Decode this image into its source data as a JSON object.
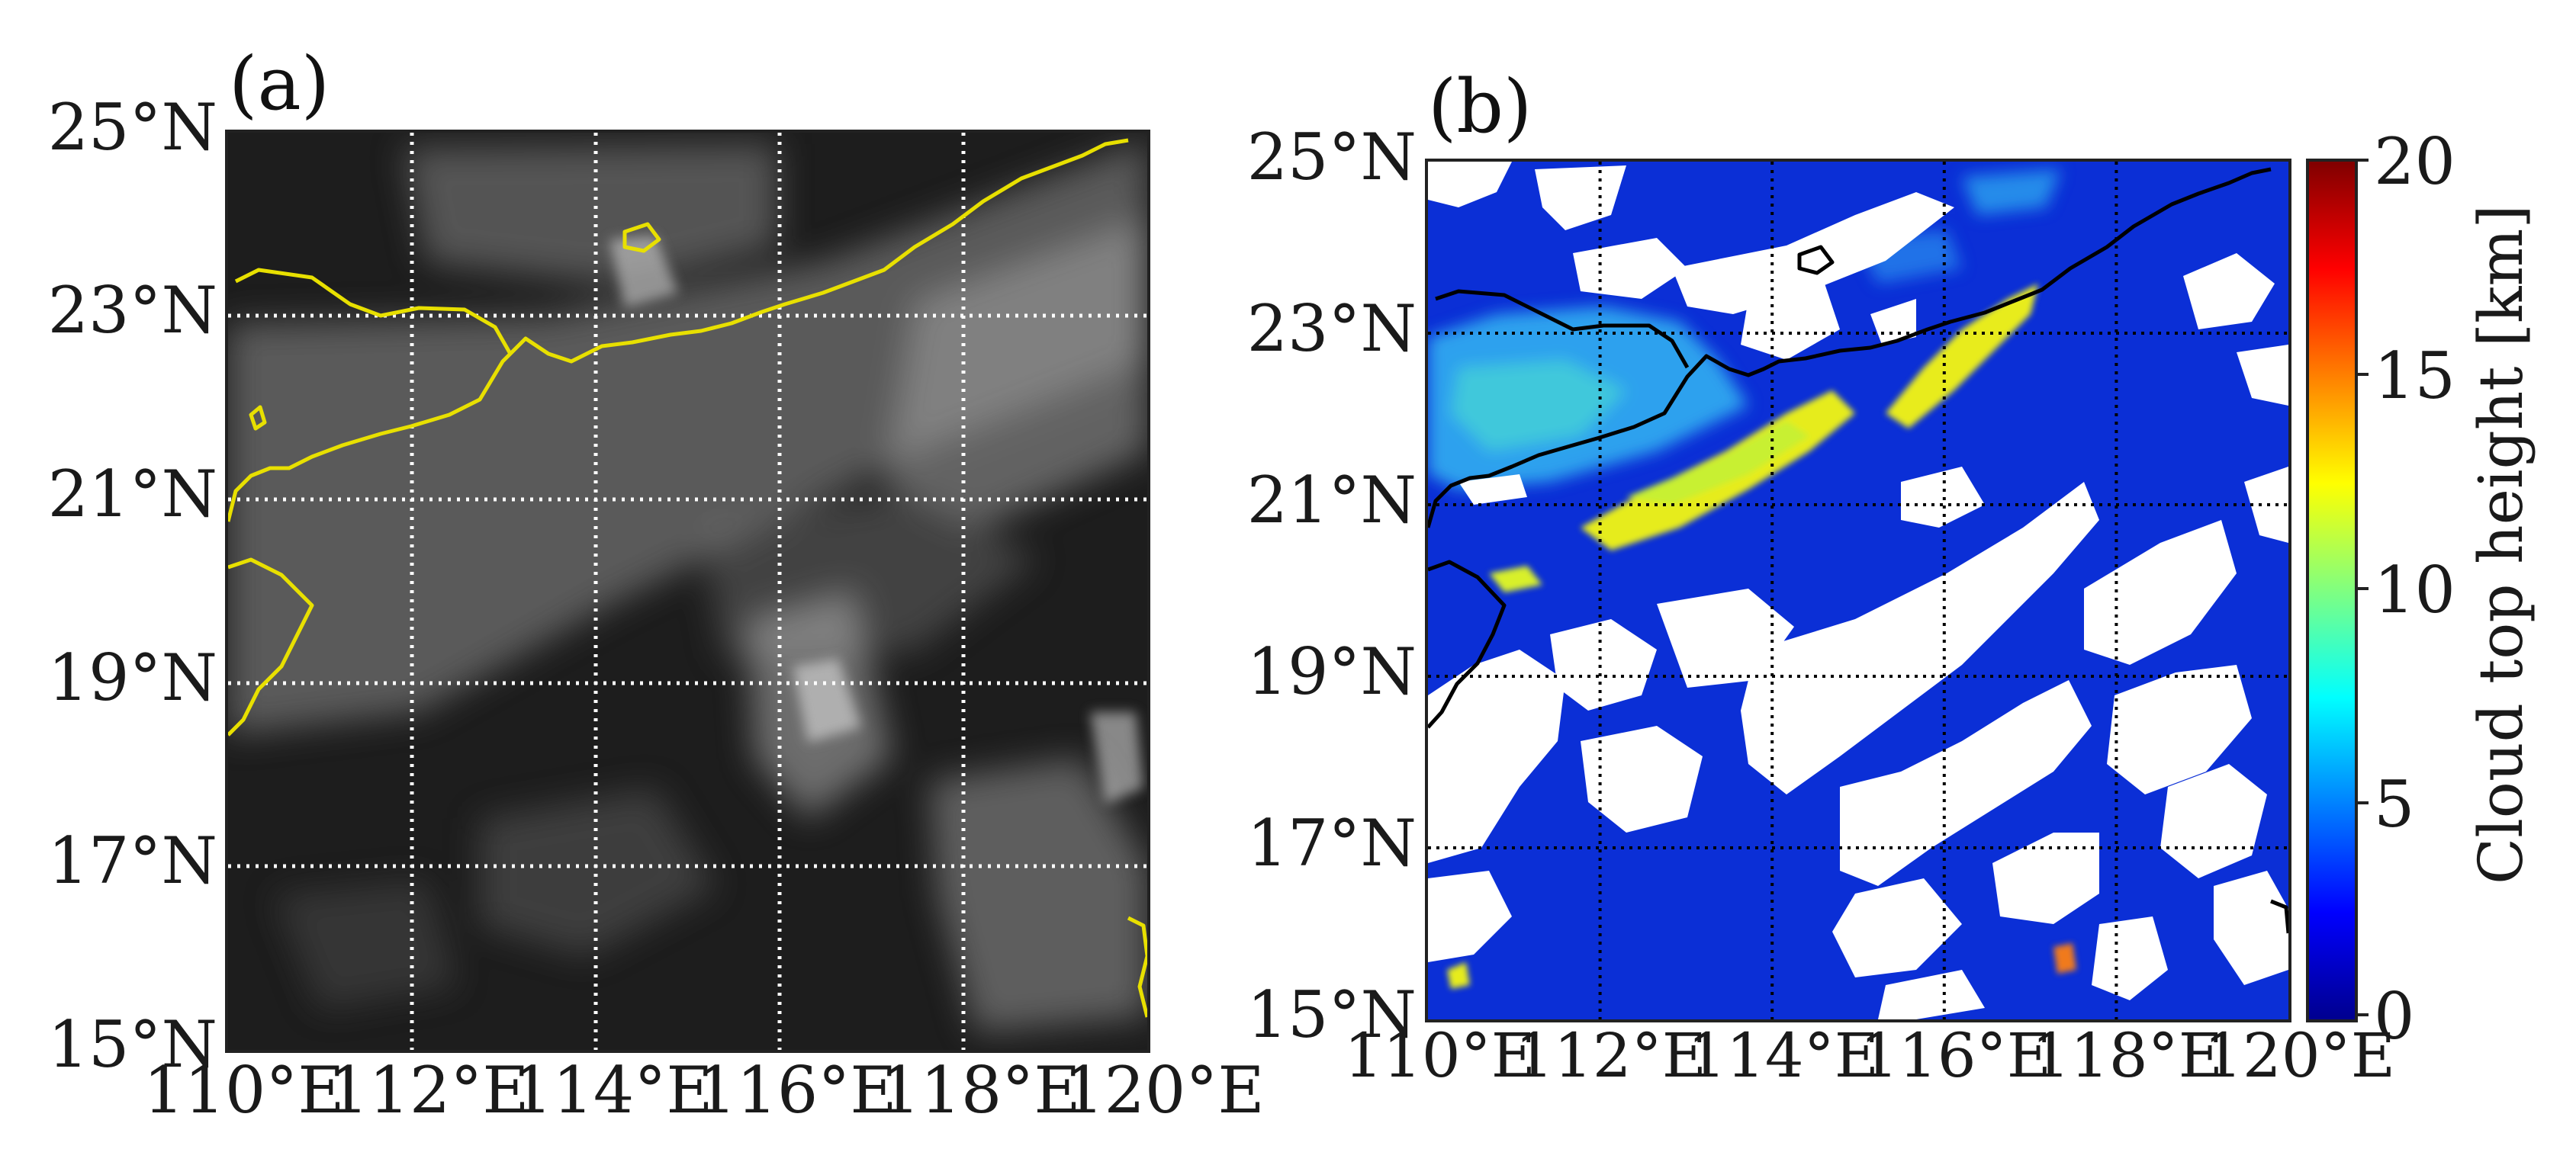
{
  "panels": {
    "a": {
      "label": "(a)",
      "lat_ticks": [
        "25°N",
        "23°N",
        "21°N",
        "19°N",
        "17°N",
        "15°N"
      ],
      "lon_ticks": [
        "110°E",
        "112°E",
        "114°E",
        "116°E",
        "118°E",
        "120°E"
      ],
      "style": {
        "background": "#1b1b1b",
        "cloud": "#cfcfcf",
        "coastline": "#e8e000",
        "grid": "#ffffff"
      }
    },
    "b": {
      "label": "(b)",
      "lat_ticks": [
        "25°N",
        "23°N",
        "21°N",
        "19°N",
        "17°N",
        "15°N"
      ],
      "lon_ticks": [
        "110°E",
        "112°E",
        "114°E",
        "116°E",
        "118°E",
        "120°E"
      ],
      "style": {
        "background": "#0a2fd8",
        "clear": "#ffffff",
        "coastline": "#000000",
        "grid": "#000000"
      }
    }
  },
  "colorbar": {
    "label": "Cloud top height [km]",
    "ticks": [
      "20",
      "15",
      "10",
      "5",
      "0"
    ],
    "range": [
      0,
      20
    ],
    "colormap": "jet"
  }
}
